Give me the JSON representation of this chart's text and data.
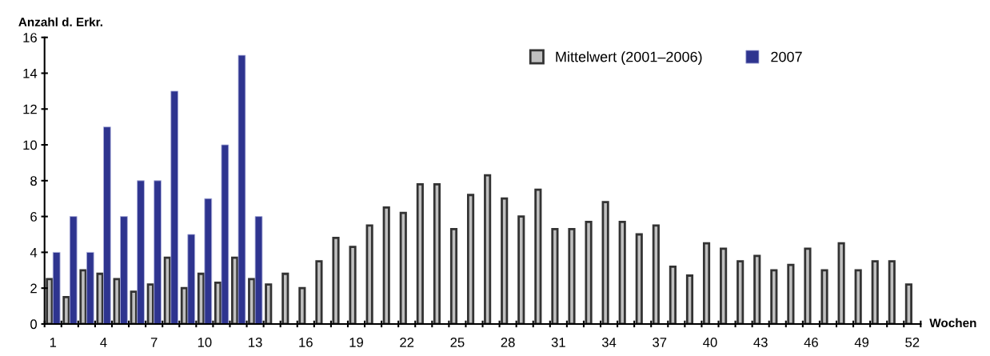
{
  "chart_data": {
    "type": "bar",
    "xlabel": "Wochen",
    "ylabel": "Anzahl d. Erkr.",
    "categories": [
      "1",
      null,
      null,
      "4",
      null,
      null,
      "7",
      null,
      null,
      "10",
      null,
      null,
      "13",
      null,
      null,
      "16",
      null,
      null,
      "19",
      null,
      null,
      "22",
      null,
      null,
      "25",
      null,
      null,
      "28",
      null,
      null,
      "31",
      null,
      null,
      "34",
      null,
      null,
      "37",
      null,
      null,
      "40",
      null,
      null,
      "43",
      null,
      null,
      "46",
      null,
      null,
      "49",
      null,
      null,
      "52"
    ],
    "series": [
      {
        "name": "Mittelwert (2001–2006)",
        "color": "#c0c0c0",
        "values": [
          2.5,
          1.5,
          3.0,
          2.8,
          2.5,
          1.8,
          2.2,
          3.7,
          2.0,
          2.8,
          2.3,
          3.7,
          2.5,
          2.2,
          2.8,
          2.0,
          3.5,
          4.8,
          4.3,
          5.5,
          6.5,
          6.2,
          7.8,
          7.8,
          5.3,
          7.2,
          8.3,
          7.0,
          6.0,
          7.5,
          5.3,
          5.3,
          5.7,
          6.8,
          5.7,
          5.0,
          5.5,
          3.2,
          2.7,
          4.5,
          4.2,
          3.5,
          3.8,
          3.0,
          3.3,
          4.2,
          3.0,
          4.5,
          3.0,
          3.5,
          3.5,
          2.2
        ]
      },
      {
        "name": "2007",
        "color": "#2e348f",
        "values": [
          4,
          6,
          4,
          11,
          6,
          8,
          8,
          13,
          5,
          7,
          10,
          15,
          6,
          null,
          null,
          null,
          null,
          null,
          null,
          null,
          null,
          null,
          null,
          null,
          null,
          null,
          null,
          null,
          null,
          null,
          null,
          null,
          null,
          null,
          null,
          null,
          null,
          null,
          null,
          null,
          null,
          null,
          null,
          null,
          null,
          null,
          null,
          null,
          null,
          null,
          null,
          null
        ]
      }
    ],
    "ylim": [
      0,
      16
    ],
    "yticks": [
      0,
      2,
      4,
      6,
      8,
      10,
      12,
      14,
      16
    ],
    "grid": false,
    "legend": "top right"
  }
}
